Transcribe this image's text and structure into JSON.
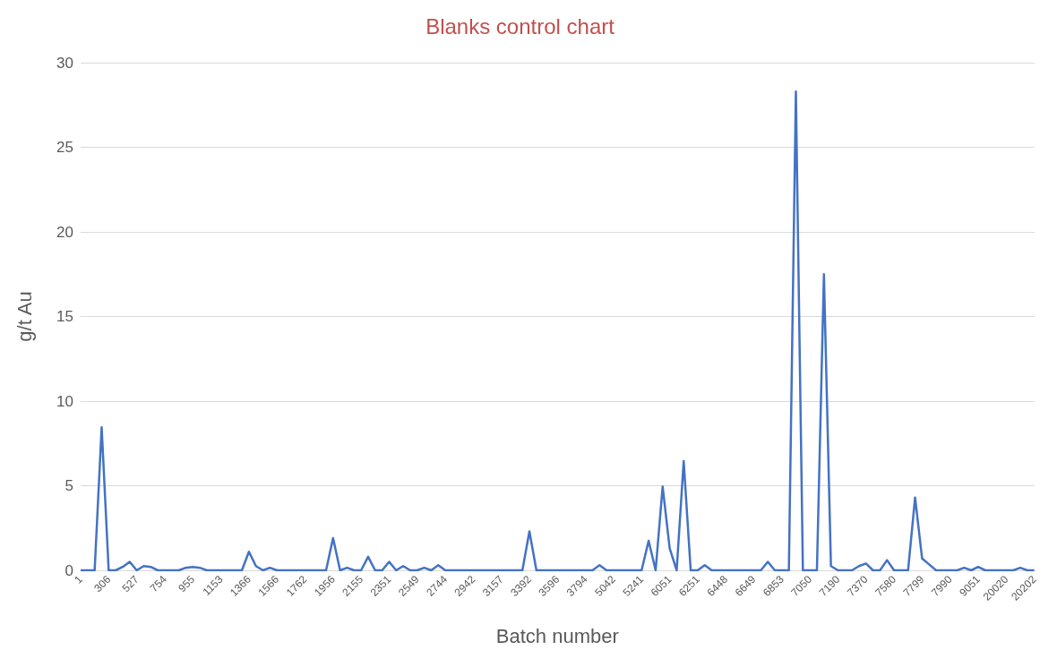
{
  "chart_data": {
    "type": "line",
    "title": "Blanks control chart",
    "xlabel": "Batch number",
    "ylabel": "g/t Au",
    "categories": [
      "1",
      null,
      null,
      null,
      "306",
      null,
      null,
      null,
      "527",
      null,
      null,
      null,
      "754",
      null,
      null,
      null,
      "955",
      null,
      null,
      null,
      "1153",
      null,
      null,
      null,
      "1366",
      null,
      null,
      null,
      "1566",
      null,
      null,
      null,
      "1762",
      null,
      null,
      null,
      "1956",
      null,
      null,
      null,
      "2155",
      null,
      null,
      null,
      "2351",
      null,
      null,
      null,
      "2549",
      null,
      null,
      null,
      "2744",
      null,
      null,
      null,
      "2942",
      null,
      null,
      null,
      "3157",
      null,
      null,
      null,
      "3392",
      null,
      null,
      null,
      "3596",
      null,
      null,
      null,
      "3794",
      null,
      null,
      null,
      "5042",
      null,
      null,
      null,
      "5241",
      null,
      null,
      null,
      "6051",
      null,
      null,
      null,
      "6251",
      null,
      null,
      null,
      "6448",
      null,
      null,
      null,
      "6649",
      null,
      null,
      null,
      "6853",
      null,
      null,
      null,
      "7050",
      null,
      null,
      null,
      "7190",
      null,
      null,
      null,
      "7370",
      null,
      null,
      null,
      "7580",
      null,
      null,
      null,
      "7799",
      null,
      null,
      null,
      "7990",
      null,
      null,
      null,
      "9051",
      null,
      null,
      null,
      "20020",
      null,
      null,
      null,
      "20202"
    ],
    "series": [
      {
        "color": "#4472c4",
        "values": [
          0,
          0,
          0,
          8.45,
          0,
          0,
          0.2,
          0.5,
          0,
          0.25,
          0.2,
          0,
          0,
          0,
          0,
          0.15,
          0.2,
          0.15,
          0,
          0,
          0,
          0,
          0,
          0,
          1.1,
          0.25,
          0,
          0.15,
          0,
          0,
          0,
          0,
          0,
          0,
          0,
          0,
          1.9,
          0,
          0.15,
          0,
          0,
          0.8,
          0,
          0,
          0.5,
          0,
          0.25,
          0,
          0,
          0.15,
          0,
          0.3,
          0,
          0,
          0,
          0,
          0,
          0,
          0,
          0,
          0,
          0,
          0,
          0,
          2.3,
          0,
          0,
          0,
          0,
          0,
          0,
          0,
          0,
          0,
          0.3,
          0,
          0,
          0,
          0,
          0,
          0,
          1.75,
          0,
          4.95,
          1.3,
          0,
          6.45,
          0,
          0,
          0.3,
          0,
          0,
          0,
          0,
          0,
          0,
          0,
          0,
          0.5,
          0,
          0,
          0,
          28.3,
          0,
          0,
          0,
          17.5,
          0.25,
          0,
          0,
          0,
          0.25,
          0.4,
          0,
          0,
          0.6,
          0,
          0,
          0,
          4.3,
          0.7,
          0.35,
          0,
          0,
          0,
          0,
          0.15,
          0,
          0.2,
          0,
          0,
          0,
          0,
          0,
          0.15,
          0,
          0
        ]
      }
    ],
    "ylim": [
      0,
      30
    ],
    "yticks": [
      0,
      5,
      10,
      15,
      20,
      25,
      30
    ],
    "grid": "y",
    "marker": "none",
    "line_style": "solid"
  }
}
